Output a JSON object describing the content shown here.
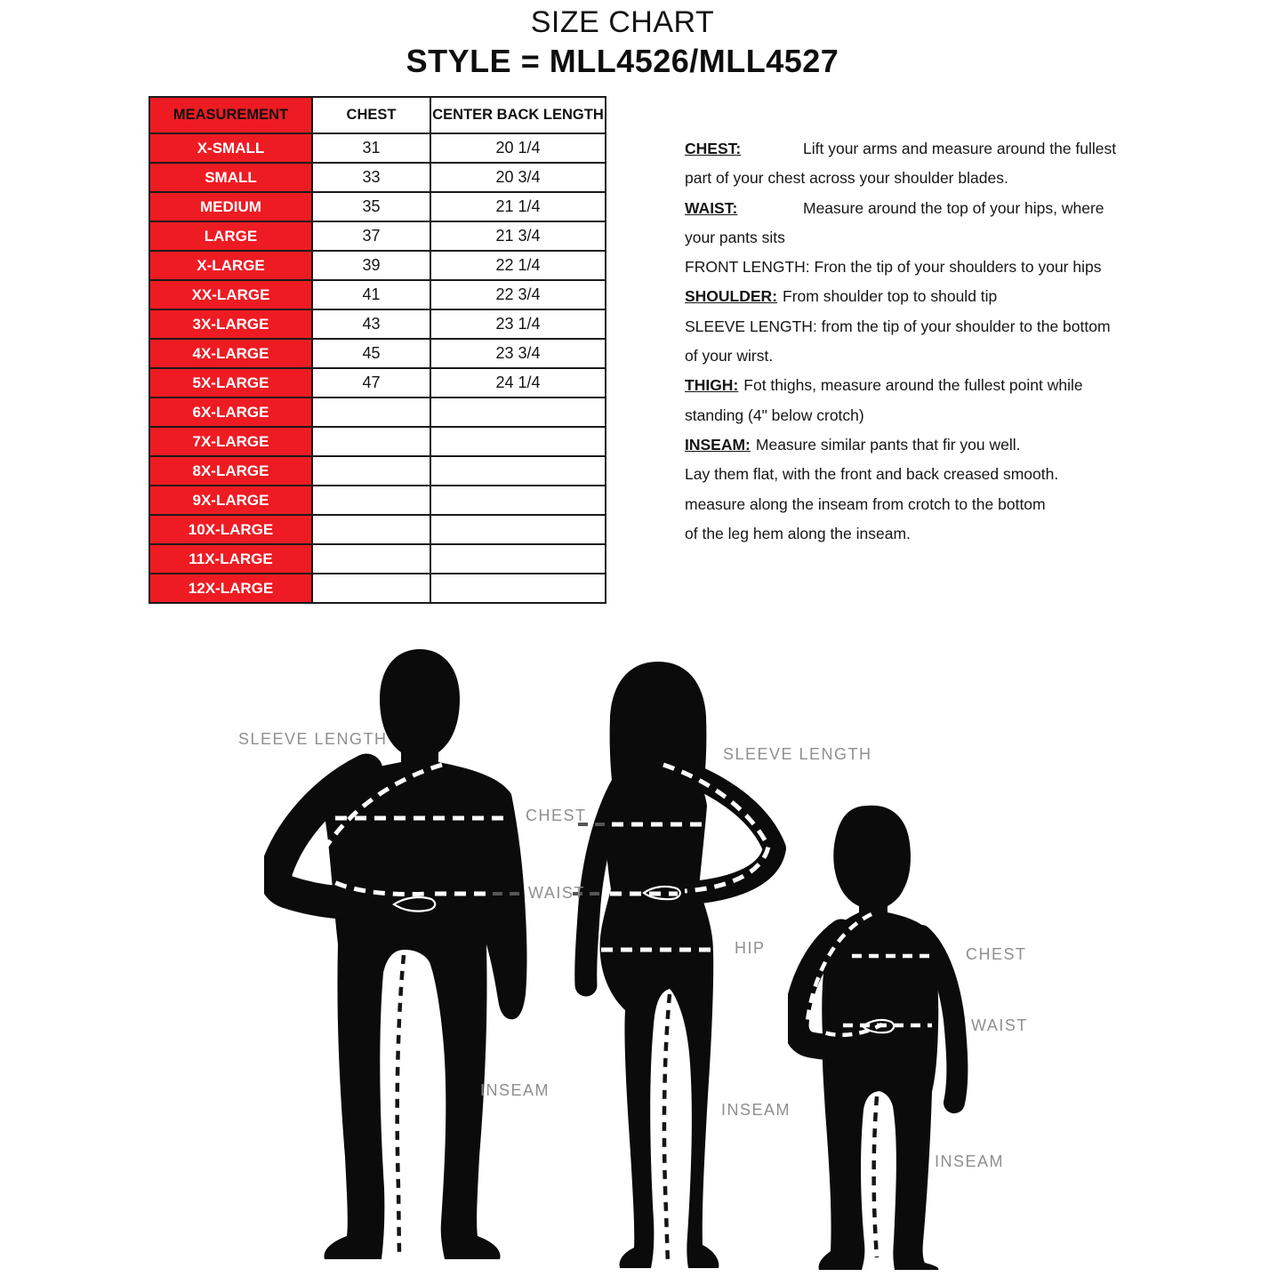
{
  "title": "SIZE CHART",
  "subtitle": "STYLE = MLL4526/MLL4527",
  "colors": {
    "red": "#ee1b23",
    "label_gray": "#8f8f8f",
    "ink": "#161616"
  },
  "size_table": {
    "headers": [
      "MEASUREMENT",
      "CHEST",
      "CENTER BACK LENGTH"
    ],
    "rows": [
      {
        "size": "X-SMALL",
        "chest": "31",
        "center_back_length": "20 1/4"
      },
      {
        "size": "SMALL",
        "chest": "33",
        "center_back_length": "20 3/4"
      },
      {
        "size": "MEDIUM",
        "chest": "35",
        "center_back_length": "21 1/4"
      },
      {
        "size": "LARGE",
        "chest": "37",
        "center_back_length": "21 3/4"
      },
      {
        "size": "X-LARGE",
        "chest": "39",
        "center_back_length": "22 1/4"
      },
      {
        "size": "XX-LARGE",
        "chest": "41",
        "center_back_length": "22 3/4"
      },
      {
        "size": "3X-LARGE",
        "chest": "43",
        "center_back_length": "23 1/4"
      },
      {
        "size": "4X-LARGE",
        "chest": "45",
        "center_back_length": "23 3/4"
      },
      {
        "size": "5X-LARGE",
        "chest": "47",
        "center_back_length": "24 1/4"
      },
      {
        "size": "6X-LARGE",
        "chest": "",
        "center_back_length": ""
      },
      {
        "size": "7X-LARGE",
        "chest": "",
        "center_back_length": ""
      },
      {
        "size": "8X-LARGE",
        "chest": "",
        "center_back_length": ""
      },
      {
        "size": "9X-LARGE",
        "chest": "",
        "center_back_length": ""
      },
      {
        "size": "10X-LARGE",
        "chest": "",
        "center_back_length": ""
      },
      {
        "size": "11X-LARGE",
        "chest": "",
        "center_back_length": ""
      },
      {
        "size": "12X-LARGE",
        "chest": "",
        "center_back_length": ""
      }
    ]
  },
  "instructions": {
    "lines": [
      {
        "label": "CHEST:",
        "tab": true,
        "text": "Lift your arms and measure around the fullest"
      },
      {
        "text": "part of your chest across your shoulder blades."
      },
      {
        "label": "WAIST:",
        "tab": true,
        "text": "Measure around the top of  your hips, where"
      },
      {
        "text": "your pants sits"
      },
      {
        "text": "FRONT LENGTH: Fron the tip of your shoulders to your hips"
      },
      {
        "label": "SHOULDER:",
        "tab": false,
        "text": "From shoulder top to should tip"
      },
      {
        "text": "SLEEVE LENGTH: from the tip of your shoulder to the bottom"
      },
      {
        "text": "of your wirst."
      },
      {
        "label": "THIGH:",
        "tab": false,
        "text": "Fot thighs, measure around the fullest point while"
      },
      {
        "text": "standing (4\" below crotch)"
      },
      {
        "label": "INSEAM:",
        "tab": false,
        "text": "Measure similar pants that fir you well."
      },
      {
        "text": "Lay them flat, with the front and back creased smooth."
      },
      {
        "text": "measure along the inseam from crotch to the bottom"
      },
      {
        "text": "of the leg hem along the inseam."
      }
    ]
  },
  "figures": {
    "man": {
      "sleeve_label": "SLEEVE LENGTH",
      "chest_label": "CHEST",
      "waist_label": "WAIST",
      "inseam_label": "INSEAM"
    },
    "woman": {
      "sleeve_label": "SLEEVE LENGTH",
      "hip_label": "HIP",
      "inseam_label": "INSEAM"
    },
    "child": {
      "chest_label": "CHEST",
      "waist_label": "WAIST",
      "inseam_label": "INSEAM"
    }
  }
}
